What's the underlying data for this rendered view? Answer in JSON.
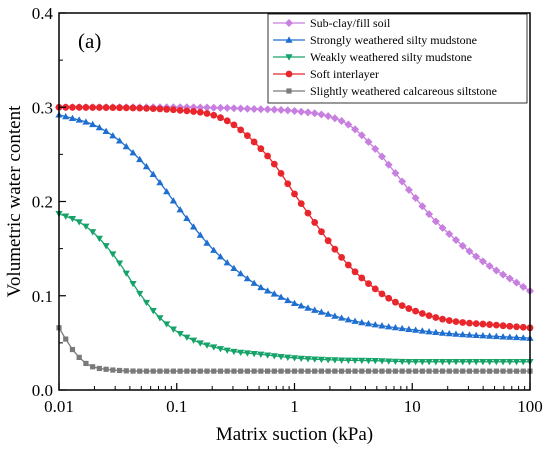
{
  "chart_data": {
    "type": "line",
    "panel_label": "(a)",
    "xlabel": "Matrix suction (kPa)",
    "ylabel": "Volumetric water content",
    "xscale": "log",
    "xlim": [
      0.01,
      100
    ],
    "ylim": [
      0,
      0.4
    ],
    "x_ticks": [
      0.01,
      0.1,
      1,
      10,
      100
    ],
    "x_tick_labels": [
      "0.01",
      "0.1",
      "1",
      "10",
      "100"
    ],
    "y_ticks": [
      0.0,
      0.1,
      0.2,
      0.3,
      0.4
    ],
    "y_tick_labels": [
      "0.0",
      "0.1",
      "0.2",
      "0.3",
      "0.4"
    ],
    "legend_position": "top-right",
    "grid": false,
    "series": [
      {
        "name": "Sub-clay/fill soil",
        "color": "#c77fe0",
        "marker": "diamond",
        "x": [
          0.01,
          0.1,
          0.5,
          1,
          2,
          3,
          5,
          7,
          10,
          15,
          20,
          30,
          50,
          70,
          100
        ],
        "y": [
          0.3,
          0.3,
          0.298,
          0.296,
          0.29,
          0.28,
          0.254,
          0.232,
          0.208,
          0.182,
          0.167,
          0.148,
          0.128,
          0.117,
          0.105
        ]
      },
      {
        "name": "Strongly weathered silty mudstone",
        "color": "#1f6fd1",
        "marker": "triangle-up",
        "x": [
          0.01,
          0.02,
          0.03,
          0.05,
          0.07,
          0.1,
          0.15,
          0.2,
          0.3,
          0.5,
          0.7,
          1,
          2,
          3,
          5,
          10,
          20,
          50,
          100
        ],
        "y": [
          0.292,
          0.281,
          0.268,
          0.243,
          0.222,
          0.196,
          0.168,
          0.15,
          0.13,
          0.11,
          0.101,
          0.092,
          0.08,
          0.074,
          0.069,
          0.064,
          0.06,
          0.057,
          0.055
        ]
      },
      {
        "name": "Weakly weathered silty mudstone",
        "color": "#16a36a",
        "marker": "triangle-down",
        "x": [
          0.01,
          0.015,
          0.02,
          0.03,
          0.05,
          0.07,
          0.1,
          0.15,
          0.2,
          0.3,
          0.5,
          1,
          2,
          5,
          10,
          30,
          100
        ],
        "y": [
          0.187,
          0.178,
          0.166,
          0.141,
          0.1,
          0.078,
          0.062,
          0.051,
          0.046,
          0.041,
          0.038,
          0.034,
          0.032,
          0.031,
          0.03,
          0.03,
          0.03
        ]
      },
      {
        "name": "Soft interlayer",
        "color": "#e8262c",
        "marker": "circle",
        "x": [
          0.01,
          0.05,
          0.1,
          0.2,
          0.3,
          0.5,
          0.7,
          1,
          1.5,
          2,
          3,
          5,
          7,
          10,
          20,
          50,
          100
        ],
        "y": [
          0.3,
          0.299,
          0.297,
          0.292,
          0.282,
          0.258,
          0.237,
          0.208,
          0.177,
          0.156,
          0.13,
          0.106,
          0.094,
          0.085,
          0.074,
          0.069,
          0.066
        ]
      },
      {
        "name": "Slightly weathered calcareous siltstone",
        "color": "#7a7a7a",
        "marker": "square",
        "x": [
          0.01,
          0.011,
          0.012,
          0.013,
          0.015,
          0.017,
          0.02,
          0.025,
          0.03,
          0.05,
          0.1,
          1,
          10,
          100
        ],
        "y": [
          0.066,
          0.057,
          0.05,
          0.043,
          0.034,
          0.028,
          0.024,
          0.022,
          0.021,
          0.02,
          0.02,
          0.02,
          0.02,
          0.02
        ]
      }
    ]
  }
}
